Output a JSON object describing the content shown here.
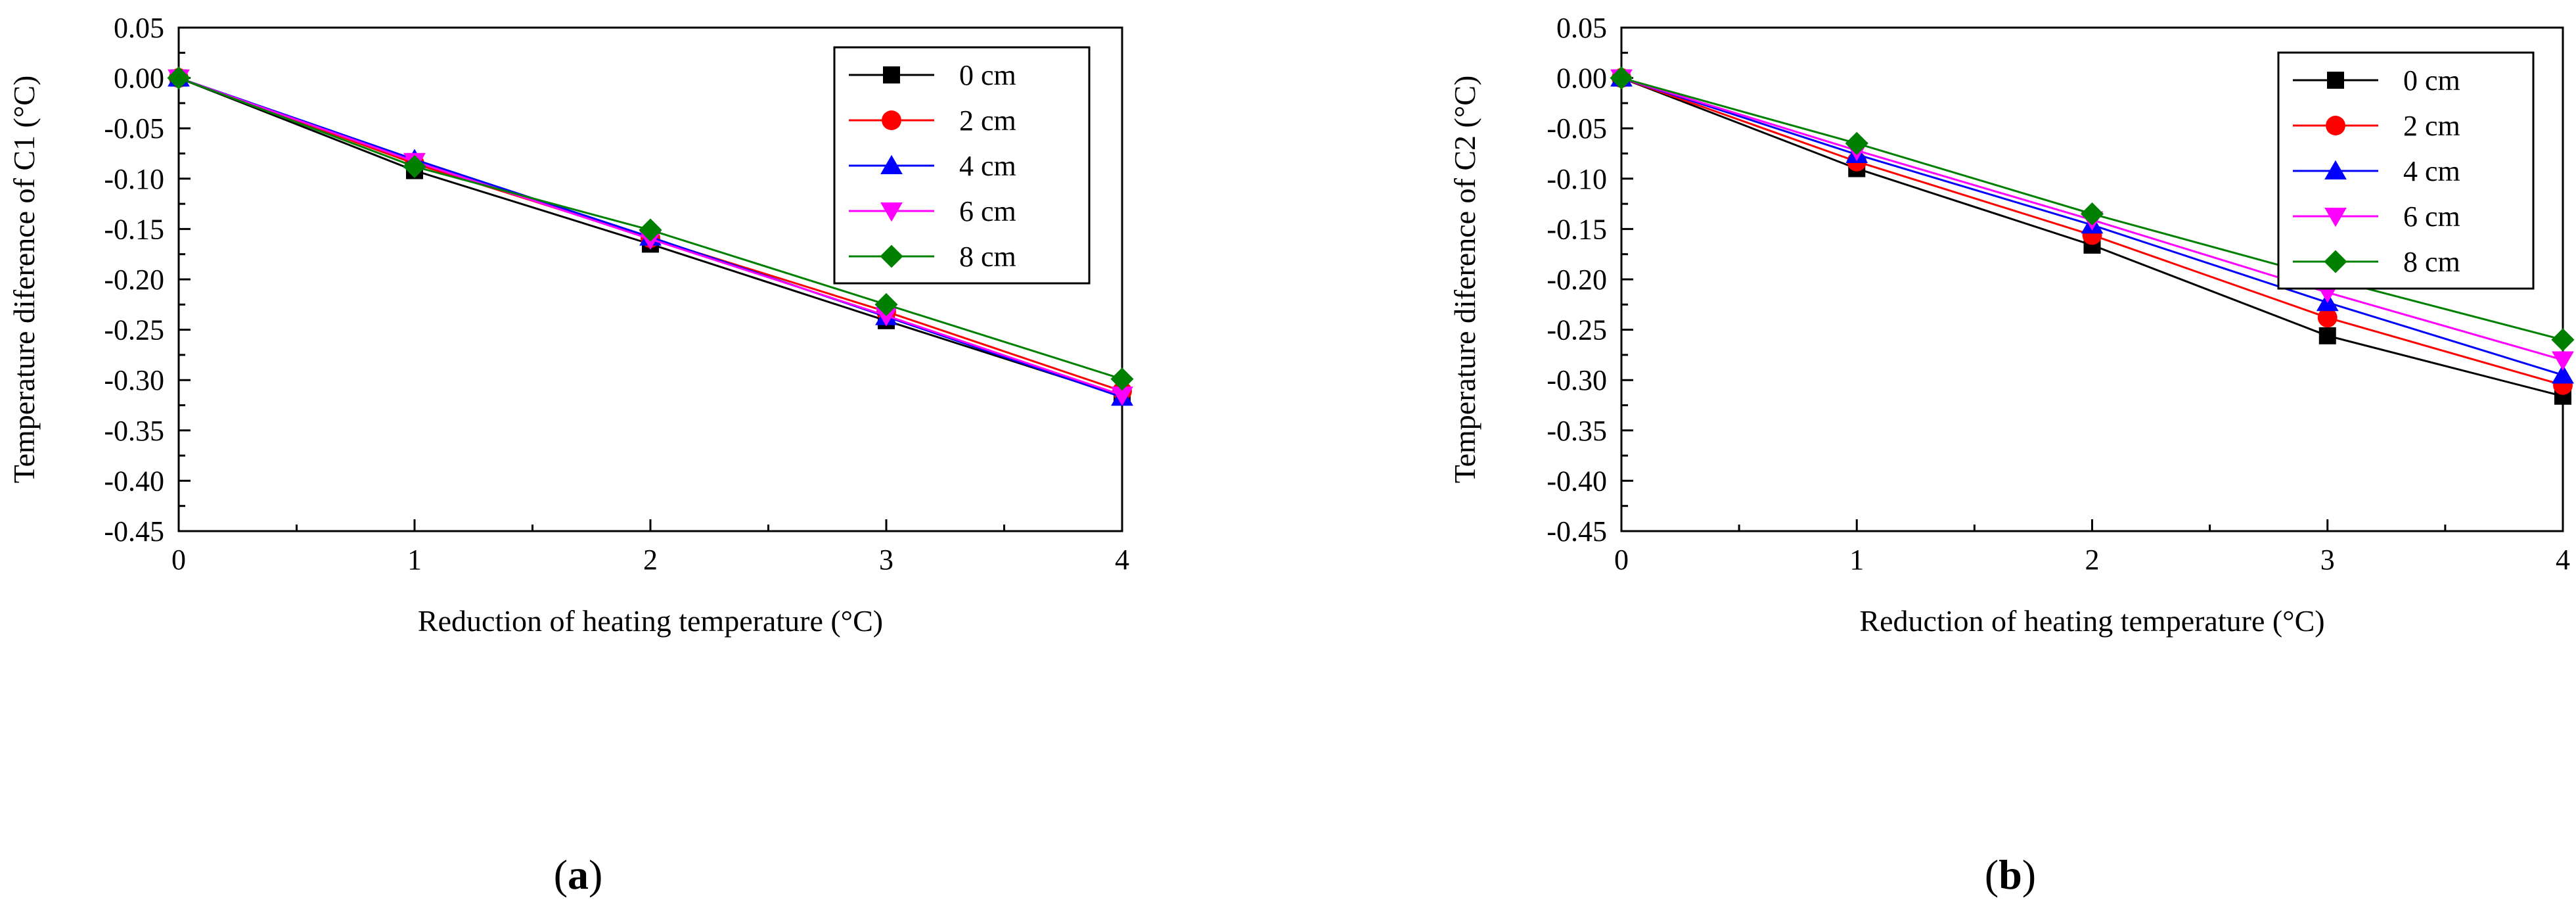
{
  "chart_data": [
    {
      "type": "line",
      "panel": "a",
      "title": "",
      "caption": {
        "open": "(",
        "letter": "a",
        "close": ")"
      },
      "xlabel": "Reduction of heating temperature (°C)",
      "ylabel": "Temperature diference of C1 (°C)",
      "xlim": [
        0,
        4
      ],
      "ylim": [
        -0.45,
        0.05
      ],
      "x_ticks": [
        0,
        1,
        2,
        3,
        4
      ],
      "x_tick_labels": [
        "0",
        "1",
        "2",
        "3",
        "4"
      ],
      "y_ticks": [
        0.05,
        0.0,
        -0.05,
        -0.1,
        -0.15,
        -0.2,
        -0.25,
        -0.3,
        -0.35,
        -0.4,
        -0.45
      ],
      "y_tick_labels": [
        "0.05",
        "0.00",
        "-0.05",
        "-0.10",
        "-0.15",
        "-0.20",
        "-0.25",
        "-0.30",
        "-0.35",
        "-0.40",
        "-0.45"
      ],
      "grid": false,
      "legend_position": "top-right",
      "x": [
        0,
        1,
        2,
        3,
        4
      ],
      "series": [
        {
          "name": "0 cm",
          "marker": "square",
          "color": "#000000",
          "values": [
            0,
            -0.092,
            -0.165,
            -0.241,
            -0.316
          ]
        },
        {
          "name": "2 cm",
          "marker": "circle",
          "color": "#ff0000",
          "values": [
            0,
            -0.085,
            -0.159,
            -0.232,
            -0.311
          ]
        },
        {
          "name": "4 cm",
          "marker": "triangle-up",
          "color": "#0000ff",
          "values": [
            0,
            -0.081,
            -0.158,
            -0.237,
            -0.317
          ]
        },
        {
          "name": "6 cm",
          "marker": "triangle-down",
          "color": "#ff00ff",
          "values": [
            0,
            -0.083,
            -0.16,
            -0.236,
            -0.315
          ]
        },
        {
          "name": "8 cm",
          "marker": "diamond",
          "color": "#008000",
          "values": [
            0,
            -0.088,
            -0.151,
            -0.225,
            -0.299
          ]
        }
      ]
    },
    {
      "type": "line",
      "panel": "b",
      "title": "",
      "caption": {
        "open": "(",
        "letter": "b",
        "close": ")"
      },
      "xlabel": "Reduction of heating temperature (°C)",
      "ylabel": "Temperature diference of C2 (°C)",
      "xlim": [
        0,
        4
      ],
      "ylim": [
        -0.45,
        0.05
      ],
      "x_ticks": [
        0,
        1,
        2,
        3,
        4
      ],
      "x_tick_labels": [
        "0",
        "1",
        "2",
        "3",
        "4"
      ],
      "y_ticks": [
        0.05,
        0.0,
        -0.05,
        -0.1,
        -0.15,
        -0.2,
        -0.25,
        -0.3,
        -0.35,
        -0.4,
        -0.45
      ],
      "y_tick_labels": [
        "0.05",
        "0.00",
        "-0.05",
        "-0.10",
        "-0.15",
        "-0.20",
        "-0.25",
        "-0.30",
        "-0.35",
        "-0.40",
        "-0.45"
      ],
      "grid": false,
      "legend_position": "top-right",
      "x": [
        0,
        1,
        2,
        3,
        4
      ],
      "series": [
        {
          "name": "0 cm",
          "marker": "square",
          "color": "#000000",
          "values": [
            0,
            -0.09,
            -0.166,
            -0.256,
            -0.316
          ]
        },
        {
          "name": "2 cm",
          "marker": "circle",
          "color": "#ff0000",
          "values": [
            0,
            -0.083,
            -0.156,
            -0.238,
            -0.305
          ]
        },
        {
          "name": "4 cm",
          "marker": "triangle-up",
          "color": "#0000ff",
          "values": [
            0,
            -0.076,
            -0.146,
            -0.223,
            -0.295
          ]
        },
        {
          "name": "6 cm",
          "marker": "triangle-down",
          "color": "#ff00ff",
          "values": [
            0,
            -0.072,
            -0.141,
            -0.213,
            -0.28
          ]
        },
        {
          "name": "8 cm",
          "marker": "diamond",
          "color": "#008000",
          "values": [
            0,
            -0.065,
            -0.135,
            -0.199,
            -0.26
          ]
        }
      ]
    }
  ]
}
